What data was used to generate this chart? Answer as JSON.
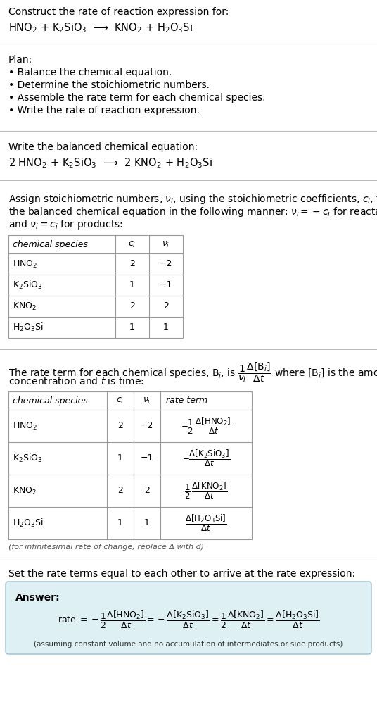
{
  "title_line1": "Construct the rate of reaction expression for:",
  "title_line2": "HNO$_2$ + K$_2$SiO$_3$  ⟶  KNO$_2$ + H$_2$O$_3$Si",
  "plan_header": "Plan:",
  "plan_items": [
    "• Balance the chemical equation.",
    "• Determine the stoichiometric numbers.",
    "• Assemble the rate term for each chemical species.",
    "• Write the rate of reaction expression."
  ],
  "balanced_header": "Write the balanced chemical equation:",
  "balanced_eq": "2 HNO$_2$ + K$_2$SiO$_3$  ⟶  2 KNO$_2$ + H$_2$O$_3$Si",
  "stoich_intro_lines": [
    "Assign stoichiometric numbers, $\\nu_i$, using the stoichiometric coefficients, $c_i$, from",
    "the balanced chemical equation in the following manner: $\\nu_i = -c_i$ for reactants",
    "and $\\nu_i = c_i$ for products:"
  ],
  "table1_headers": [
    "chemical species",
    "$c_i$",
    "$\\nu_i$"
  ],
  "table1_rows": [
    [
      "HNO$_2$",
      "2",
      "−2"
    ],
    [
      "K$_2$SiO$_3$",
      "1",
      "−1"
    ],
    [
      "KNO$_2$",
      "2",
      "2"
    ],
    [
      "H$_2$O$_3$Si",
      "1",
      "1"
    ]
  ],
  "rate_intro_line1": "The rate term for each chemical species, B$_i$, is $\\dfrac{1}{\\nu_i}\\dfrac{\\Delta[\\mathrm{B}_i]}{\\Delta t}$ where [B$_i$] is the amount",
  "rate_intro_line2": "concentration and $t$ is time:",
  "table2_headers": [
    "chemical species",
    "$c_i$",
    "$\\nu_i$",
    "rate term"
  ],
  "table2_rows": [
    [
      "HNO$_2$",
      "2",
      "−2",
      "$-\\dfrac{1}{2}\\,\\dfrac{\\Delta[\\mathrm{HNO_2}]}{\\Delta t}$"
    ],
    [
      "K$_2$SiO$_3$",
      "1",
      "−1",
      "$-\\dfrac{\\Delta[\\mathrm{K_2SiO_3}]}{\\Delta t}$"
    ],
    [
      "KNO$_2$",
      "2",
      "2",
      "$\\dfrac{1}{2}\\,\\dfrac{\\Delta[\\mathrm{KNO_2}]}{\\Delta t}$"
    ],
    [
      "H$_2$O$_3$Si",
      "1",
      "1",
      "$\\dfrac{\\Delta[\\mathrm{H_2O_3Si}]}{\\Delta t}$"
    ]
  ],
  "infinitesimal_note": "(for infinitesimal rate of change, replace Δ with d)",
  "answer_intro": "Set the rate terms equal to each other to arrive at the rate expression:",
  "answer_bg": "#dff0f5",
  "answer_border": "#9bbfcc",
  "answer_label": "Answer:",
  "rate_expression": "rate $= -\\dfrac{1}{2}\\dfrac{\\Delta[\\mathrm{HNO_2}]}{\\Delta t} = -\\dfrac{\\Delta[\\mathrm{K_2SiO_3}]}{\\Delta t} = \\dfrac{1}{2}\\dfrac{\\Delta[\\mathrm{KNO_2}]}{\\Delta t} = \\dfrac{\\Delta[\\mathrm{H_2O_3Si}]}{\\Delta t}$",
  "rate_note": "(assuming constant volume and no accumulation of intermediates or side products)",
  "bg_color": "#ffffff",
  "text_color": "#000000",
  "table_border_color": "#999999",
  "separator_color": "#bbbbbb"
}
